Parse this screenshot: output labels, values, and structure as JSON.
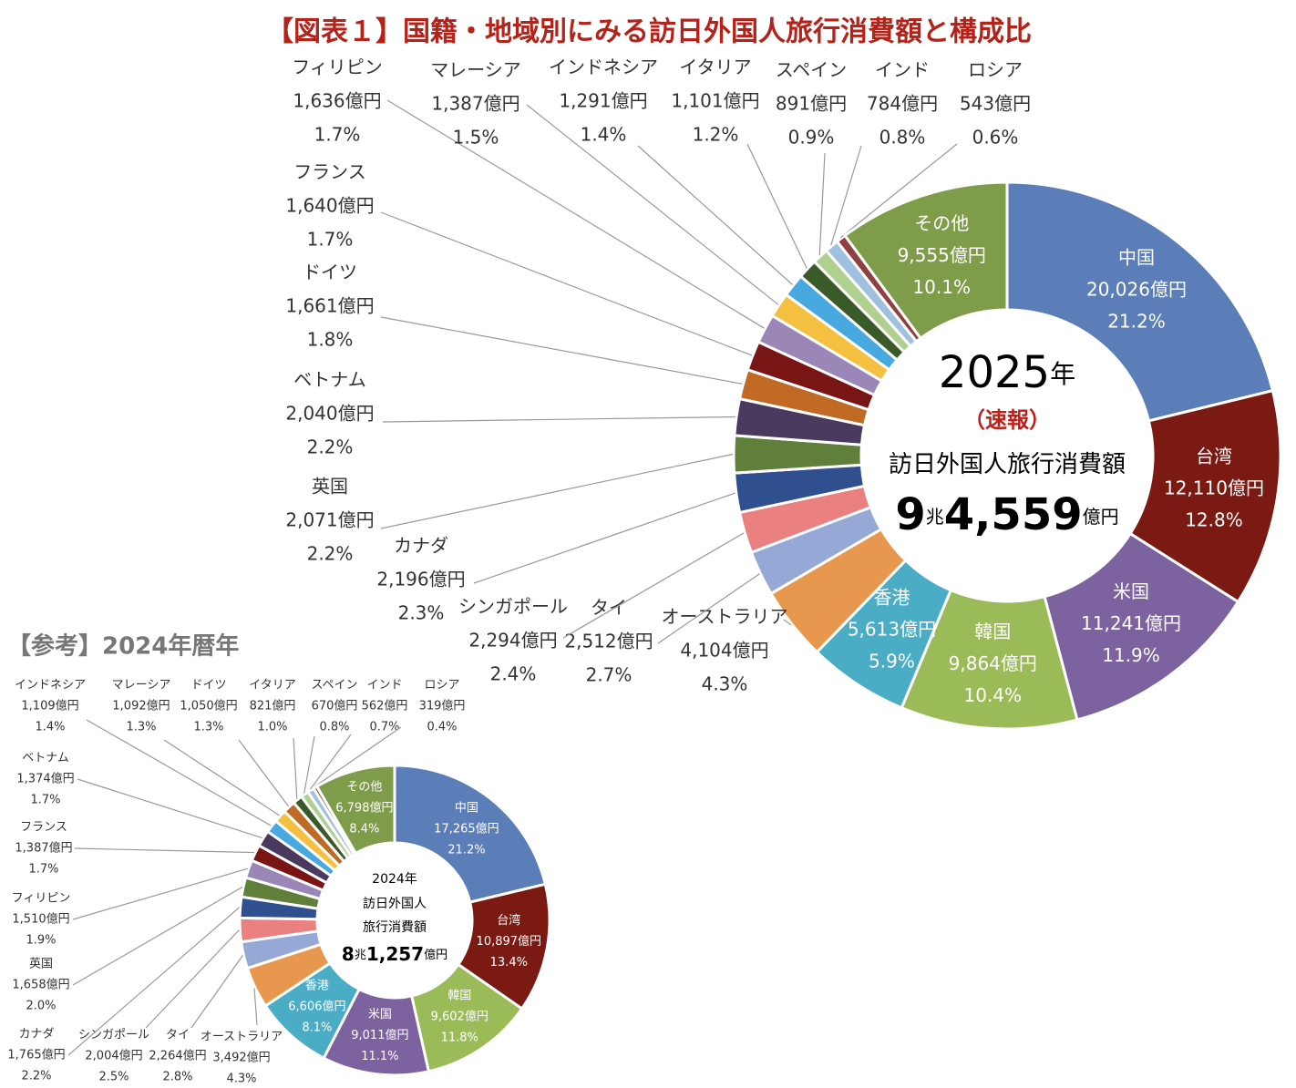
{
  "title": "【図表１】国籍・地域別にみる訪日外国人旅行消費額と構成比",
  "chart_data": [
    {
      "type": "donut",
      "center_lines": [
        [
          "2025",
          "年"
        ],
        [
          "（速報）"
        ],
        [
          "訪日外国人旅行消費額"
        ],
        [
          "9",
          "兆",
          "4,559",
          "億円"
        ]
      ],
      "categories": [
        "中国",
        "台湾",
        "米国",
        "韓国",
        "香港",
        "オーストラリア",
        "タイ",
        "シンガポール",
        "カナダ",
        "英国",
        "ベトナム",
        "ドイツ",
        "フランス",
        "フィリピン",
        "マレーシア",
        "インドネシア",
        "イタリア",
        "スペイン",
        "インド",
        "ロシア",
        "その他"
      ],
      "values": [
        20026,
        12110,
        11241,
        9864,
        5613,
        4104,
        2512,
        2294,
        2196,
        2071,
        2040,
        1661,
        1640,
        1636,
        1387,
        1291,
        1101,
        891,
        784,
        543,
        9555
      ],
      "value_labels": [
        "20,026億円",
        "12,110億円",
        "11,241億円",
        "9,864億円",
        "5,613億円",
        "4,104億円",
        "2,512億円",
        "2,294億円",
        "2,196億円",
        "2,071億円",
        "2,040億円",
        "1,661億円",
        "1,640億円",
        "1,636億円",
        "1,387億円",
        "1,291億円",
        "1,101億円",
        "891億円",
        "784億円",
        "543億円",
        "9,555億円"
      ],
      "shares": [
        21.2,
        12.8,
        11.9,
        10.4,
        5.9,
        4.3,
        2.7,
        2.4,
        2.3,
        2.2,
        2.2,
        1.8,
        1.7,
        1.7,
        1.5,
        1.4,
        1.2,
        0.9,
        0.8,
        0.6,
        10.1
      ],
      "share_labels": [
        "21.2%",
        "12.8%",
        "11.9%",
        "10.4%",
        "5.9%",
        "4.3%",
        "2.7%",
        "2.4%",
        "2.3%",
        "2.2%",
        "2.2%",
        "1.8%",
        "1.7%",
        "1.7%",
        "1.5%",
        "1.4%",
        "1.2%",
        "0.9%",
        "0.8%",
        "0.6%",
        "10.1%"
      ],
      "colors": [
        "#5b7db8",
        "#7a1a12",
        "#7d62a0",
        "#9bbb59",
        "#4bacc6",
        "#e8974f",
        "#95a8d6",
        "#eb8080",
        "#2f4f8f",
        "#5f7f3a",
        "#4a3a60",
        "#c06a25",
        "#7a1515",
        "#9b86b8",
        "#f5c040",
        "#48a8e0",
        "#3a5a2a",
        "#b0d090",
        "#a0c0e0",
        "#904040",
        "#7f9c4a"
      ]
    },
    {
      "type": "donut",
      "subtitle": "【参考】2024年暦年",
      "center_lines": [
        [
          "2024年"
        ],
        [
          "訪日外国人"
        ],
        [
          "旅行消費額"
        ],
        [
          "8",
          "兆",
          "1,257",
          "億円"
        ]
      ],
      "categories": [
        "中国",
        "台湾",
        "韓国",
        "米国",
        "香港",
        "オーストラリア",
        "タイ",
        "シンガポール",
        "カナダ",
        "英国",
        "フィリピン",
        "フランス",
        "ベトナム",
        "インドネシア",
        "マレーシア",
        "ドイツ",
        "イタリア",
        "スペイン",
        "インド",
        "ロシア",
        "その他"
      ],
      "values": [
        17265,
        10897,
        9602,
        9011,
        6606,
        3492,
        2264,
        2004,
        1765,
        1658,
        1510,
        1387,
        1374,
        1109,
        1092,
        1050,
        821,
        670,
        562,
        319,
        6798
      ],
      "value_labels": [
        "17,265億円",
        "10,897億円",
        "9,602億円",
        "9,011億円",
        "6,606億円",
        "3,492億円",
        "2,264億円",
        "2,004億円",
        "1,765億円",
        "1,658億円",
        "1,510億円",
        "1,387億円",
        "1,374億円",
        "1,109億円",
        "1,092億円",
        "1,050億円",
        "821億円",
        "670億円",
        "562億円",
        "319億円",
        "6,798億円"
      ],
      "shares": [
        21.2,
        13.4,
        11.8,
        11.1,
        8.1,
        4.3,
        2.8,
        2.5,
        2.2,
        2.0,
        1.9,
        1.7,
        1.7,
        1.4,
        1.3,
        1.3,
        1.0,
        0.8,
        0.7,
        0.4,
        8.4
      ],
      "share_labels": [
        "21.2%",
        "13.4%",
        "11.8%",
        "11.1%",
        "8.1%",
        "4.3%",
        "2.8%",
        "2.5%",
        "2.2%",
        "2.0%",
        "1.9%",
        "1.7%",
        "1.7%",
        "1.4%",
        "1.3%",
        "1.3%",
        "1.0%",
        "0.8%",
        "0.7%",
        "0.4%",
        "8.4%"
      ],
      "colors": [
        "#5b7db8",
        "#7a1a12",
        "#9bbb59",
        "#7d62a0",
        "#4bacc6",
        "#e8974f",
        "#95a8d6",
        "#eb8080",
        "#2f4f8f",
        "#5f7f3a",
        "#9b86b8",
        "#7a1515",
        "#4a3a60",
        "#48a8e0",
        "#f5c040",
        "#c06a25",
        "#3a5a2a",
        "#b0d090",
        "#a0c0e0",
        "#904040",
        "#7f9c4a"
      ]
    }
  ]
}
